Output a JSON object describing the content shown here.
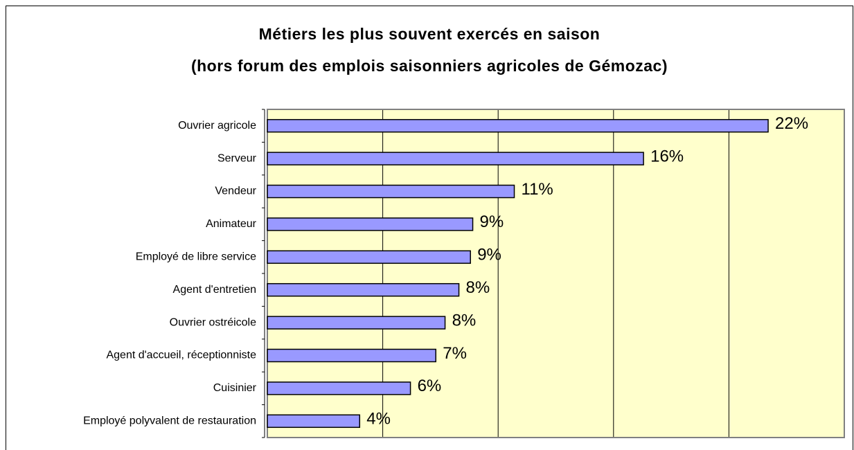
{
  "chart_data": {
    "type": "bar",
    "orientation": "horizontal",
    "title": "Métiers les plus souvent exercés en saison",
    "subtitle": "(hors forum des emplois saisonniers agricoles de Gémozac)",
    "categories": [
      "Ouvrier agricole",
      "Serveur",
      "Vendeur",
      "Animateur",
      "Employé de libre service",
      "Agent d'entretien",
      "Ouvrier ostréicole",
      "Agent d'accueil, réceptionniste",
      "Cuisinier",
      "Employé polyvalent de restauration"
    ],
    "values": [
      21.7,
      16.3,
      10.7,
      8.9,
      8.8,
      8.3,
      7.7,
      7.3,
      6.2,
      4.0
    ],
    "value_labels": [
      "22%",
      "16%",
      "11%",
      "9%",
      "9%",
      "8%",
      "8%",
      "7%",
      "6%",
      "4%"
    ],
    "color": "#9999ff",
    "xlim": [
      0,
      25
    ],
    "xticks": [
      0,
      5,
      10,
      15,
      20,
      25
    ],
    "grid": true,
    "background": "#ffffcc"
  }
}
